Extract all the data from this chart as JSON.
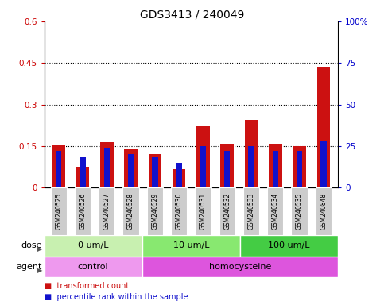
{
  "title": "GDS3413 / 240049",
  "samples": [
    "GSM240525",
    "GSM240526",
    "GSM240527",
    "GSM240528",
    "GSM240529",
    "GSM240530",
    "GSM240531",
    "GSM240532",
    "GSM240533",
    "GSM240534",
    "GSM240535",
    "GSM240848"
  ],
  "red_values": [
    0.155,
    0.075,
    0.165,
    0.138,
    0.122,
    0.065,
    0.22,
    0.158,
    0.245,
    0.158,
    0.15,
    0.435
  ],
  "blue_pct": [
    22,
    18,
    24,
    20,
    18,
    15,
    25,
    22,
    25,
    22,
    22,
    28
  ],
  "ylim_left": [
    0,
    0.6
  ],
  "ylim_right": [
    0,
    100
  ],
  "yticks_left": [
    0,
    0.15,
    0.3,
    0.45,
    0.6
  ],
  "yticks_right": [
    0,
    25,
    50,
    75,
    100
  ],
  "ytick_labels_left": [
    "0",
    "0.15",
    "0.3",
    "0.45",
    "0.6"
  ],
  "ytick_labels_right": [
    "0",
    "25",
    "50",
    "75",
    "100%"
  ],
  "hlines": [
    0.15,
    0.3,
    0.45
  ],
  "dose_groups": [
    {
      "label": "0 um/L",
      "start": 0,
      "end": 4,
      "color": "#c8f0b0"
    },
    {
      "label": "10 um/L",
      "start": 4,
      "end": 8,
      "color": "#88e870"
    },
    {
      "label": "100 um/L",
      "start": 8,
      "end": 12,
      "color": "#44cc44"
    }
  ],
  "agent_groups": [
    {
      "label": "control",
      "start": 0,
      "end": 4,
      "color": "#ee99ee"
    },
    {
      "label": "homocysteine",
      "start": 4,
      "end": 12,
      "color": "#dd55dd"
    }
  ],
  "bar_color_red": "#cc1111",
  "bar_color_blue": "#1111cc",
  "bar_width": 0.55,
  "tick_label_bg": "#cccccc",
  "title_fontsize": 10,
  "axis_label_color_left": "#cc0000",
  "axis_label_color_right": "#0000cc",
  "label_fontsize": 8,
  "tick_fontsize": 7.5
}
